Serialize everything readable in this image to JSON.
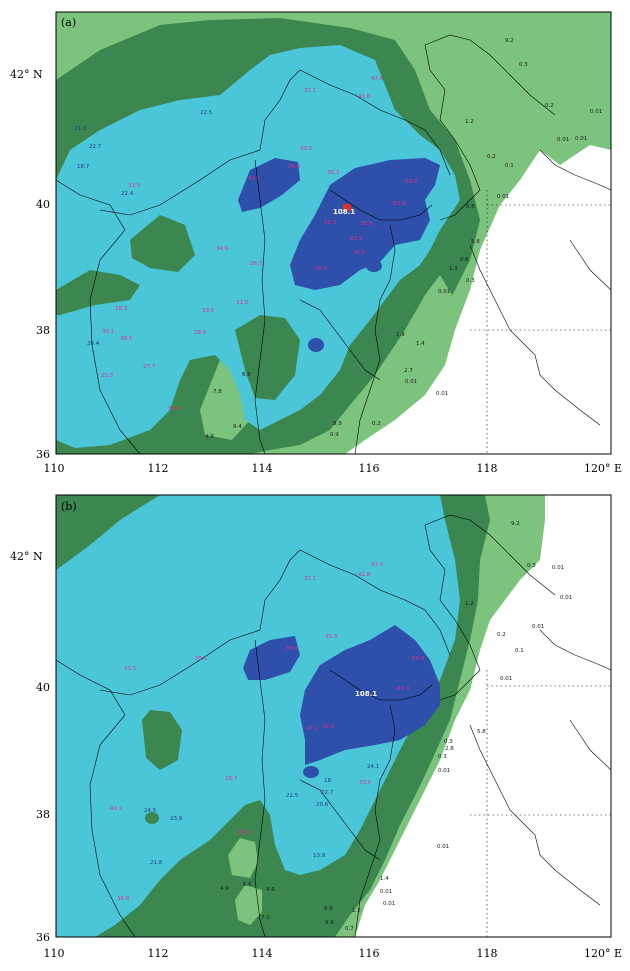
{
  "figure": {
    "x_ticks": [
      "110",
      "112",
      "114",
      "116",
      "118",
      "120° E"
    ],
    "y_ticks": [
      "36",
      "38",
      "40",
      "42° N"
    ],
    "colors": {
      "frame": "#000000",
      "level_0": "#ffffff",
      "level_1": "#7cc47d",
      "level_2": "#3c8650",
      "level_3": "#4ac6d8",
      "level_4": "#2e4faa",
      "max_marker": "#e0302a"
    },
    "panels": [
      {
        "id": "a",
        "label": "(a)",
        "max_value": "108.1",
        "station_values": [
          "9.2",
          "0.3",
          "0.2",
          "0.01",
          "0.01",
          "0.01",
          "0.2",
          "0.1",
          "0.01",
          "1.2",
          "0.8",
          "5.8",
          "0.6",
          "1.3",
          "0.3",
          "0.01",
          "1.4",
          "0.01",
          "0.01",
          "2.7",
          "1.9",
          "9.4",
          "7.8",
          "6.6",
          "4.9",
          "9.9",
          "0.9",
          "0.2",
          "31.5",
          "34.6",
          "35.3",
          "22.5",
          "30.5",
          "21.3",
          "22.7",
          "18.7",
          "37.1",
          "41.8",
          "47.4",
          "35.3",
          "86.6",
          "80.9",
          "83.9",
          "38.5",
          "62.5",
          "28.5",
          "35.1",
          "42.7",
          "33.5",
          "28.0",
          "31.0",
          "26.7",
          "22.4",
          "28.3",
          "30.1",
          "36.5",
          "27.7",
          "20.4",
          "25.3",
          "34.0"
        ]
      },
      {
        "id": "b",
        "label": "(b)",
        "max_value": "108.1",
        "station_values": [
          "9.2",
          "0.3",
          "0.01",
          "0.01",
          "0.01",
          "0.1",
          "0.01",
          "0.2",
          "0.3",
          "1.2",
          "5.8",
          "2.8",
          "0.3",
          "0.01",
          "0.01",
          "1.4",
          "0.01",
          "0.01",
          "0.7",
          "1.2",
          "6.6",
          "4.6",
          "4.9",
          "7.1",
          "6.9",
          "9.9",
          "24.5",
          "23.9",
          "21.8",
          "24.1",
          "18",
          "22.7",
          "22.5",
          "20.6",
          "13.9",
          "37.1",
          "41.8",
          "47.4",
          "35.3",
          "86.6",
          "80.9",
          "83.9",
          "47.2",
          "42.1",
          "33.5",
          "28.0",
          "26.7",
          "31.5",
          "35.1",
          "40.2",
          "36.8"
        ]
      }
    ]
  }
}
